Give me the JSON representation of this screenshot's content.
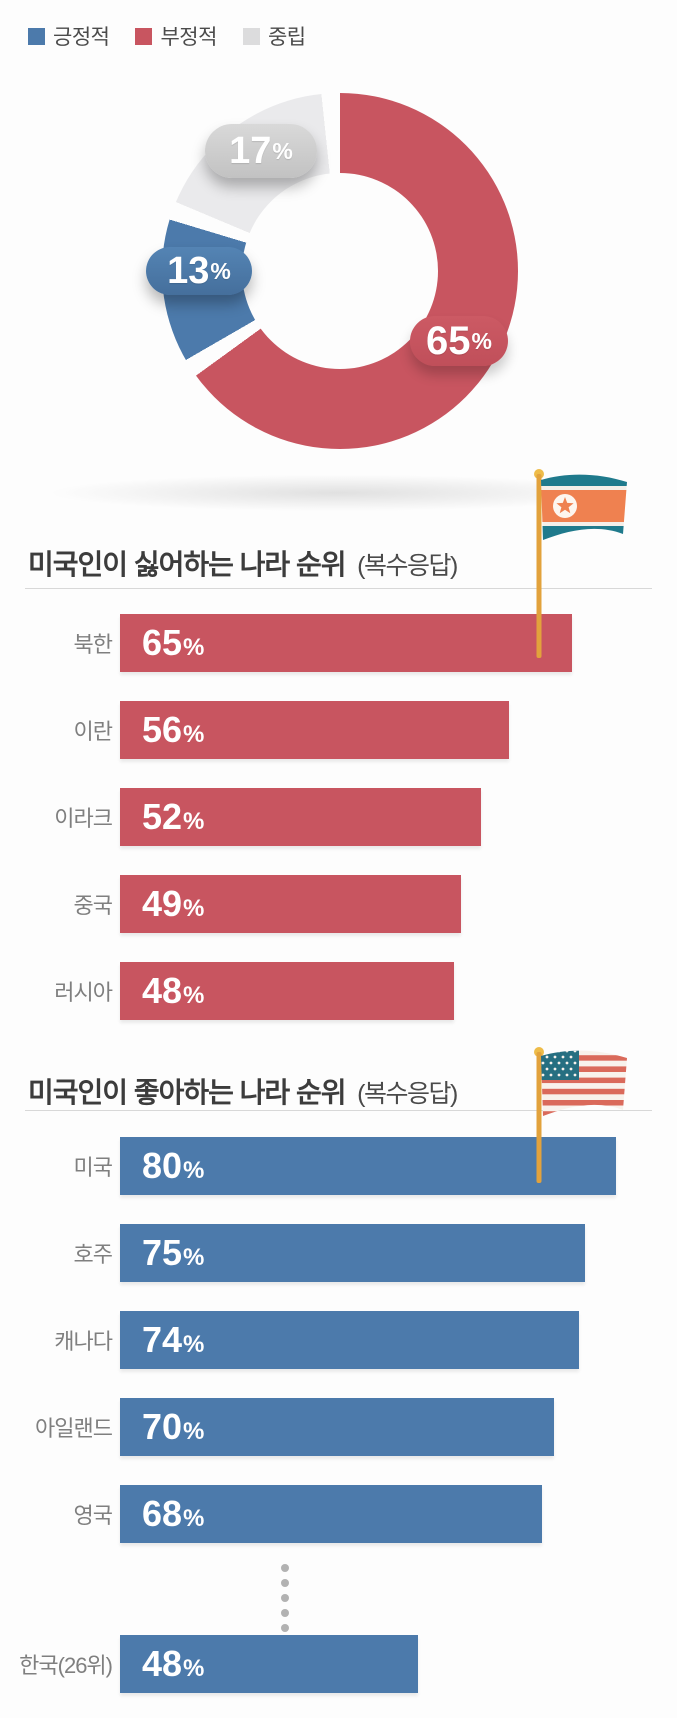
{
  "legend": {
    "items": [
      {
        "label": "긍정적",
        "color": "#4c7aab"
      },
      {
        "label": "부정적",
        "color": "#c85560"
      },
      {
        "label": "중립",
        "color": "#dcdcdd"
      }
    ]
  },
  "chart_data": [
    {
      "type": "pie",
      "subtype": "donut",
      "unit": "%",
      "start_angle_deg": 0,
      "direction": "clockwise",
      "gap_between_slices_deg": 6,
      "slices": [
        {
          "label": "부정적",
          "value": 65,
          "color": "#c85560"
        },
        {
          "label": "긍정적",
          "value": 13,
          "color": "#4c7aab"
        },
        {
          "label": "중립",
          "value": 17,
          "color": "#eaeaec"
        }
      ]
    },
    {
      "type": "bar",
      "orientation": "horizontal",
      "title": "미국인이 싫어하는 나라 순위",
      "title_suffix": "(복수응답)",
      "flag": "north-korea-flag",
      "unit": "%",
      "bar_color": "#c85560",
      "xlim": [
        0,
        100
      ],
      "categories": [
        "북한",
        "이란",
        "이라크",
        "중국",
        "러시아"
      ],
      "values": [
        65,
        56,
        52,
        49,
        48
      ]
    },
    {
      "type": "bar",
      "orientation": "horizontal",
      "title": "미국인이 좋아하는 나라 순위",
      "title_suffix": "(복수응답)",
      "flag": "united-states-flag",
      "unit": "%",
      "bar_color": "#4c7aab",
      "xlim": [
        0,
        100
      ],
      "categories": [
        "미국",
        "호주",
        "캐나다",
        "아일랜드",
        "영국",
        "한국(26위)"
      ],
      "values": [
        80,
        75,
        74,
        70,
        68,
        48
      ],
      "ellipsis_before_index": 5,
      "ellipsis_dot_count": 5
    }
  ]
}
